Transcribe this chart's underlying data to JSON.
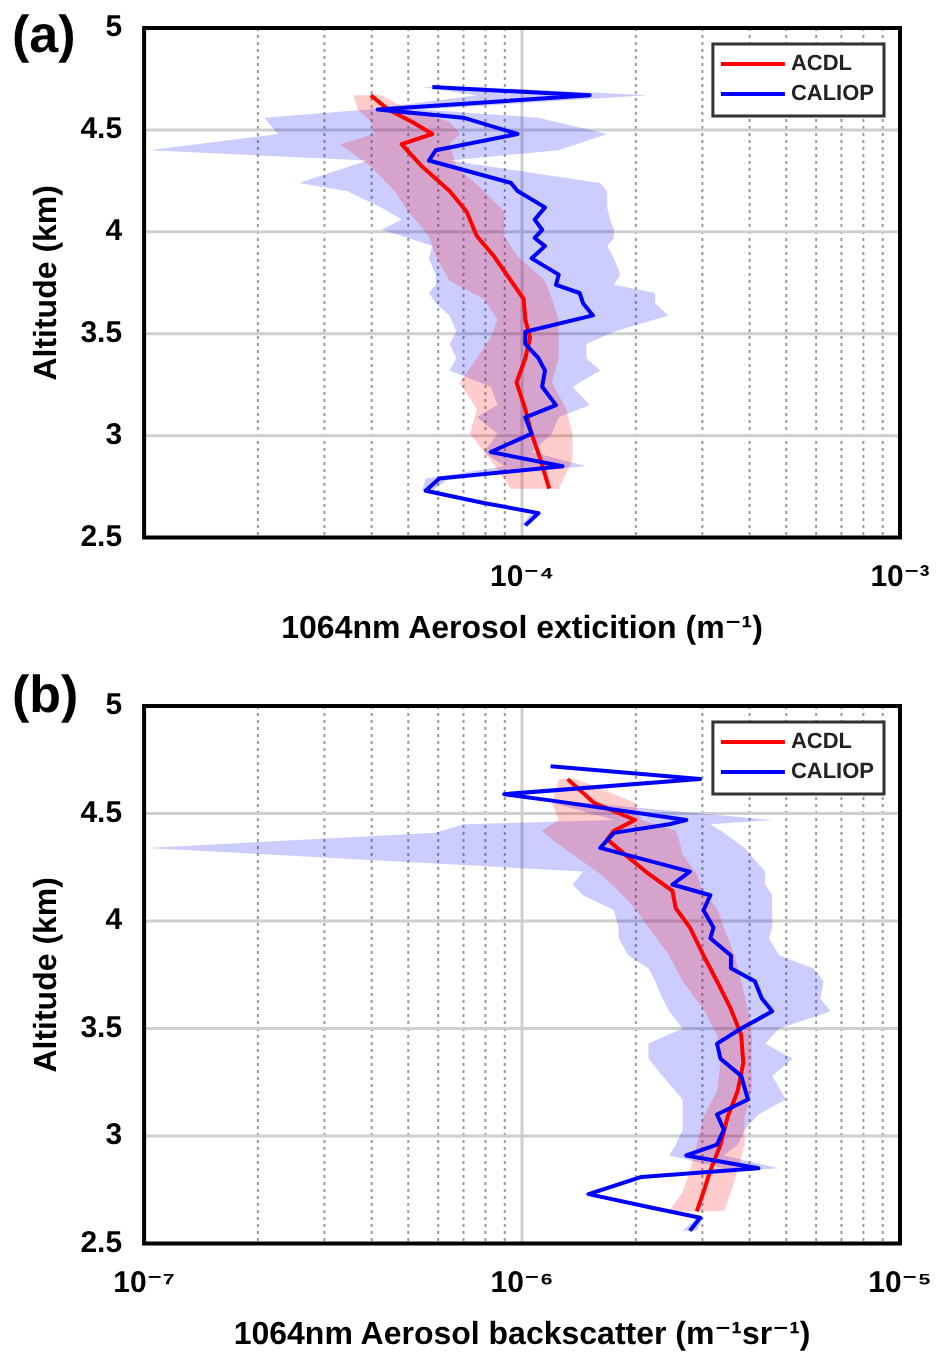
{
  "chart_data": [
    {
      "type": "line",
      "orientation": "horizontal",
      "title": "(a)",
      "xlabel": "1064nm Aerosol exticition (m⁻¹)",
      "ylabel": "Altitude (km)",
      "log": "x",
      "grid": true,
      "legend": "top right",
      "xlim": [
        1e-05,
        0.001
      ],
      "xticks": [
        {
          "value": 1e-05,
          "label": null
        },
        {
          "value": 2e-05,
          "label": null
        },
        {
          "value": 3e-05,
          "label": null
        },
        {
          "value": 4e-05,
          "label": null
        },
        {
          "value": 5e-05,
          "label": null
        },
        {
          "value": 6e-05,
          "label": null
        },
        {
          "value": 7e-05,
          "label": null
        },
        {
          "value": 8e-05,
          "label": null
        },
        {
          "value": 9e-05,
          "label": null
        },
        {
          "value": 0.0001,
          "label": "10⁻⁴"
        },
        {
          "value": 0.0002,
          "label": null
        },
        {
          "value": 0.0003,
          "label": null
        },
        {
          "value": 0.0004,
          "label": null
        },
        {
          "value": 0.0005,
          "label": null
        },
        {
          "value": 0.0006,
          "label": null
        },
        {
          "value": 0.0007,
          "label": null
        },
        {
          "value": 0.0008,
          "label": null
        },
        {
          "value": 0.0009,
          "label": null
        },
        {
          "value": 0.001,
          "label": "10⁻³"
        }
      ],
      "ylim": [
        2.5,
        5
      ],
      "yticks": [
        2.5,
        3,
        3.5,
        4,
        4.5,
        5
      ],
      "series": [
        {
          "name": "CALIOP",
          "color": "#0000ff",
          "values": [
            5.79e-05,
            0.000151,
            4.15e-05,
            6.99e-05,
            9.73e-05,
            5.91e-05,
            5.67e-05,
            9.35e-05,
            9.73e-05,
            0.000115,
            0.000108,
            0.000113,
            0.000108,
            0.000115,
            0.000106,
            0.000125,
            0.000123,
            0.000142,
            0.000145,
            0.000154,
            0.000102,
            0.000102,
            0.0001105,
            0.000115,
            0.000113,
            0.000123,
            0.000102,
            0.000106,
            8.26e-05,
            0.000128,
            6.04e-05,
            5.56e-05,
            7.92e-05,
            0.0001105,
            0.000102
          ],
          "x": [
            4.71,
            4.67,
            4.6,
            4.56,
            4.48,
            4.4,
            4.35,
            4.24,
            4.2,
            4.12,
            4.06,
            4.01,
            3.97,
            3.93,
            3.87,
            3.79,
            3.74,
            3.7,
            3.65,
            3.59,
            3.51,
            3.45,
            3.38,
            3.32,
            3.24,
            3.15,
            3.09,
            3.01,
            2.92,
            2.85,
            2.79,
            2.73,
            2.67,
            2.62,
            2.56
          ],
          "lower": [
            5.44e-05,
            7.59e-05,
            3.9e-05,
            2.08e-05,
            2.26e-05,
            1.03e-05,
            3.9e-05,
            2.57e-05,
            3.44e-05,
            4.24e-05,
            4.8e-05,
            4.24e-05,
            5e-05,
            5.79e-05,
            5.67e-05,
            5.91e-05,
            5.91e-05,
            5.67e-05,
            5.91e-05,
            6.43e-05,
            6.7e-05,
            6.43e-05,
            6.7e-05,
            6.43e-05,
            8.26e-05,
            8.61e-05,
            7.59e-05,
            8.61e-05,
            7.92e-05,
            8.97e-05,
            5.56e-05,
            5.44e-05,
            7.59e-05,
            0.000106,
            9.96e-05
          ],
          "upper": [
            7.59e-05,
            0.000215,
            5.44e-05,
            0.0001105,
            0.000168,
            0.000125,
            6.43e-05,
            0.000161,
            0.000168,
            0.000168,
            0.000171,
            0.000175,
            0.000175,
            0.000168,
            0.000175,
            0.000182,
            0.000175,
            0.000225,
            0.000225,
            0.000244,
            0.000175,
            0.000148,
            0.000148,
            0.000161,
            0.000136,
            0.000151,
            0.000125,
            0.00012,
            0.000106,
            0.000148,
            6.43e-05,
            5.79e-05,
            8.26e-05,
            0.000113,
            0.000104
          ]
        },
        {
          "name": "ACDL",
          "color": "#ff0000",
          "values": [
            3.98e-05,
            4.42e-05,
            5.11e-05,
            5.79e-05,
            4.8e-05,
            5.44e-05,
            6.43e-05,
            7.13e-05,
            7.59e-05,
            8.43e-05,
            9.35e-05,
            0.000101,
            0.000102,
            0.000105,
            0.000102,
            9.67e-05,
            0.000102,
            0.000106,
            0.000112,
            0.000118
          ],
          "x": [
            4.67,
            4.6,
            4.54,
            4.48,
            4.43,
            4.32,
            4.2,
            4.1,
            3.98,
            3.88,
            3.76,
            3.67,
            3.57,
            3.48,
            3.38,
            3.26,
            3.13,
            3.01,
            2.88,
            2.74
          ],
          "lower": [
            3.58e-05,
            3.67e-05,
            3.98e-05,
            4.06e-05,
            3.3e-05,
            3.98e-05,
            4.6e-05,
            5e-05,
            5.67e-05,
            5.91e-05,
            6.43e-05,
            7.92e-05,
            8.61e-05,
            8.26e-05,
            7.59e-05,
            6.84e-05,
            7.59e-05,
            7.28e-05,
            8.26e-05,
            9.35e-05
          ],
          "upper": [
            4.24e-05,
            5e-05,
            6.43e-05,
            6.84e-05,
            6.43e-05,
            6.7e-05,
            7.92e-05,
            8.97e-05,
            8.97e-05,
            9.73e-05,
            0.000115,
            0.00012,
            0.000125,
            0.000125,
            0.000125,
            0.00012,
            0.000131,
            0.000136,
            0.000136,
            0.000125
          ]
        }
      ]
    },
    {
      "type": "line",
      "orientation": "horizontal",
      "title": "(b)",
      "xlabel": "1064nm Aerosol backscatter (m⁻¹sr⁻¹)",
      "ylabel": "Altitude (km)",
      "log": "x",
      "grid": true,
      "legend": "top right",
      "xlim": [
        1e-07,
        1e-05
      ],
      "xticks": [
        {
          "value": 1e-07,
          "label": "10⁻⁷"
        },
        {
          "value": 2e-07,
          "label": null
        },
        {
          "value": 3e-07,
          "label": null
        },
        {
          "value": 4e-07,
          "label": null
        },
        {
          "value": 5e-07,
          "label": null
        },
        {
          "value": 6e-07,
          "label": null
        },
        {
          "value": 7e-07,
          "label": null
        },
        {
          "value": 8e-07,
          "label": null
        },
        {
          "value": 9e-07,
          "label": null
        },
        {
          "value": 1e-06,
          "label": "10⁻⁶"
        },
        {
          "value": 2e-06,
          "label": null
        },
        {
          "value": 3e-06,
          "label": null
        },
        {
          "value": 4e-06,
          "label": null
        },
        {
          "value": 5e-06,
          "label": null
        },
        {
          "value": 6e-06,
          "label": null
        },
        {
          "value": 7e-06,
          "label": null
        },
        {
          "value": 8e-06,
          "label": null
        },
        {
          "value": 9e-06,
          "label": null
        },
        {
          "value": 1e-05,
          "label": "10⁻⁵"
        }
      ],
      "ylim": [
        2.5,
        5
      ],
      "yticks": [
        2.5,
        3,
        3.5,
        4,
        4.5,
        5
      ],
      "series": [
        {
          "name": "CALIOP",
          "color": "#0000ff",
          "values": [
            1.19e-06,
            2.96e-06,
            8.97e-07,
            1.2e-06,
            2.72e-06,
            2.45e-06,
            1.75e-06,
            1.61e-06,
            2.78e-06,
            2.5e-06,
            3.15e-06,
            3.02e-06,
            3.21e-06,
            3.15e-06,
            3.57e-06,
            3.57e-06,
            4.13e-06,
            4.31e-06,
            4.59e-06,
            3.8e-06,
            3.28e-06,
            3.35e-06,
            3.8e-06,
            3.96e-06,
            3.28e-06,
            3.42e-06,
            3.28e-06,
            2.72e-06,
            4.22e-06,
            2.07e-06,
            1.5e-06,
            2.16e-06,
            2.96e-06,
            2.78e-06
          ],
          "x": [
            4.72,
            4.66,
            4.59,
            4.56,
            4.47,
            4.45,
            4.41,
            4.34,
            4.23,
            4.17,
            4.12,
            4.05,
            3.97,
            3.92,
            3.84,
            3.78,
            3.72,
            3.64,
            3.58,
            3.5,
            3.43,
            3.36,
            3.28,
            3.17,
            3.1,
            3.03,
            2.96,
            2.91,
            2.85,
            2.81,
            2.73,
            2.67,
            2.62,
            2.56
          ],
          "lower": [
            1.15e-06,
            2.9e-06,
            8.8e-07,
            1.15e-06,
            1.75e-06,
            7e-07,
            5.9e-07,
            1.02e-07,
            1.45e-06,
            1.36e-06,
            1.45e-06,
            1.75e-06,
            1.8e-06,
            1.8e-06,
            1.91e-06,
            2.16e-06,
            2.25e-06,
            2.35e-06,
            2.45e-06,
            2.66e-06,
            2.16e-06,
            2.16e-06,
            2.35e-06,
            2.66e-06,
            2.66e-06,
            2.66e-06,
            2.55e-06,
            2.45e-06,
            3.42e-06,
            1.99e-06,
            1.45e-06,
            2.07e-06,
            2.9e-06,
            2.66e-06
          ],
          "upper": [
            1.25e-06,
            3.02e-06,
            9.2e-07,
            1.25e-06,
            4.59e-06,
            3.15e-06,
            3.42e-06,
            3.88e-06,
            4.4e-06,
            4.4e-06,
            4.59e-06,
            4.59e-06,
            4.59e-06,
            4.5e-06,
            4.79e-06,
            5.9e-06,
            6.28e-06,
            6.15e-06,
            6.55e-06,
            4.79e-06,
            4.4e-06,
            5.2e-06,
            4.59e-06,
            4.99e-06,
            4.22e-06,
            3.88e-06,
            3.72e-06,
            3.42e-06,
            4.79e-06,
            2.16e-06,
            1.55e-06,
            2.25e-06,
            3.02e-06,
            2.9e-06
          ]
        },
        {
          "name": "ACDL",
          "color": "#ff0000",
          "values": [
            1.32e-06,
            1.55e-06,
            1.99e-06,
            1.75e-06,
            1.68e-06,
            1.87e-06,
            2.16e-06,
            2.5e-06,
            2.55e-06,
            2.78e-06,
            3.02e-06,
            3.28e-06,
            3.57e-06,
            3.8e-06,
            3.85e-06,
            3.72e-06,
            3.5e-06,
            3.35e-06,
            3.15e-06,
            3.02e-06,
            2.9e-06
          ],
          "x": [
            4.66,
            4.55,
            4.47,
            4.42,
            4.38,
            4.31,
            4.22,
            4.14,
            4.06,
            3.97,
            3.84,
            3.72,
            3.59,
            3.47,
            3.34,
            3.21,
            3.09,
            2.96,
            2.84,
            2.74,
            2.65
          ],
          "lower": [
            1.25e-06,
            1.2e-06,
            1.25e-06,
            1.13e-06,
            1.2e-06,
            1.36e-06,
            1.61e-06,
            1.8e-06,
            1.99e-06,
            2.16e-06,
            2.45e-06,
            2.66e-06,
            3.02e-06,
            3.28e-06,
            3.35e-06,
            3.28e-06,
            3.02e-06,
            2.9e-06,
            2.78e-06,
            2.66e-06,
            2.45e-06
          ],
          "upper": [
            1.39e-06,
            1.99e-06,
            2.07e-06,
            2.55e-06,
            2.6e-06,
            2.66e-06,
            2.9e-06,
            3e-06,
            3.28e-06,
            3.42e-06,
            3.65e-06,
            3.8e-06,
            3.96e-06,
            4.05e-06,
            4.05e-06,
            4.05e-06,
            3.88e-06,
            3.88e-06,
            3.72e-06,
            3.57e-06,
            3.42e-06
          ]
        }
      ]
    }
  ]
}
